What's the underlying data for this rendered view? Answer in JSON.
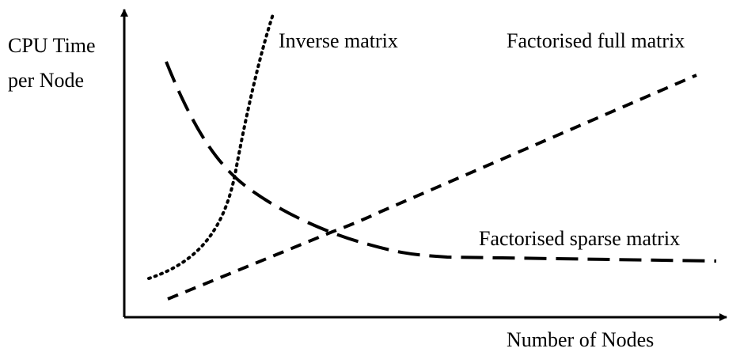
{
  "y_axis_label": [
    "CPU Time",
    "per Node"
  ],
  "x_axis_label": "Number of Nodes",
  "curves": [
    {
      "label": "Inverse matrix"
    },
    {
      "label": "Factorised full matrix"
    },
    {
      "label": "Factorised sparse matrix"
    }
  ]
}
